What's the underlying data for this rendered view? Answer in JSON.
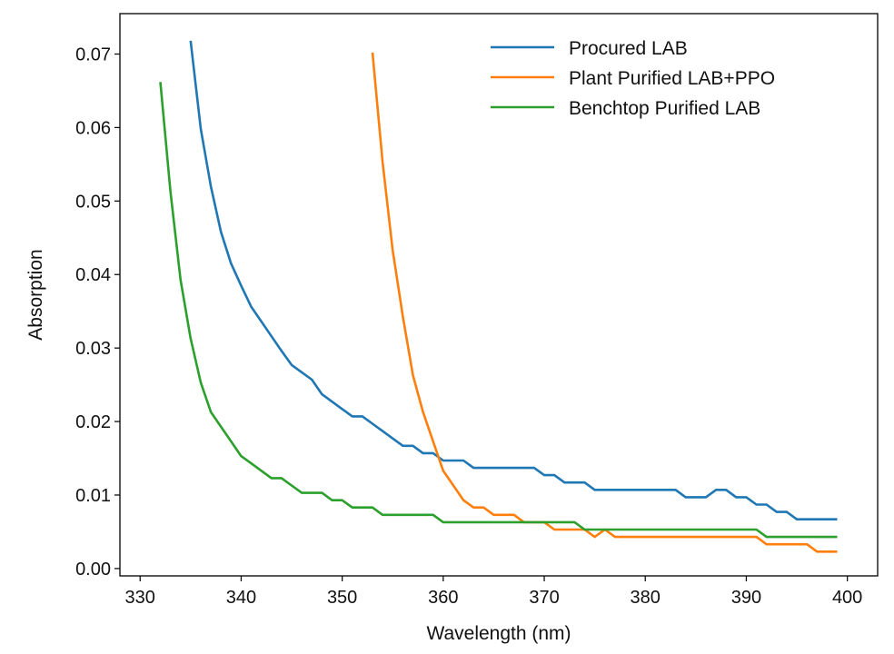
{
  "chart_data": {
    "type": "line",
    "title": "",
    "xlabel": "Wavelength (nm)",
    "ylabel": "Absorption",
    "xlim": [
      328,
      403
    ],
    "ylim": [
      -0.001,
      0.0755
    ],
    "xticks": [
      330,
      340,
      350,
      360,
      370,
      380,
      390,
      400
    ],
    "yticks": [
      0.0,
      0.01,
      0.02,
      0.03,
      0.04,
      0.05,
      0.06,
      0.07
    ],
    "ytick_labels": [
      "0.00",
      "0.01",
      "0.02",
      "0.03",
      "0.04",
      "0.05",
      "0.06",
      "0.07"
    ],
    "grid": false,
    "legend": "top-right",
    "series": [
      {
        "name": "Procured LAB",
        "color": "#1f77b4",
        "x": [
          335,
          336,
          337,
          338,
          339,
          340,
          341,
          342,
          343,
          344,
          345,
          346,
          347,
          348,
          349,
          350,
          351,
          352,
          353,
          354,
          355,
          356,
          357,
          358,
          359,
          360,
          361,
          362,
          363,
          364,
          365,
          366,
          367,
          368,
          369,
          370,
          371,
          372,
          373,
          374,
          375,
          376,
          377,
          378,
          379,
          380,
          381,
          382,
          383,
          384,
          385,
          386,
          387,
          388,
          389,
          390,
          391,
          392,
          393,
          394,
          395,
          396,
          397,
          398,
          399
        ],
        "y": [
          0.0718,
          0.0598,
          0.052,
          0.0458,
          0.0415,
          0.0385,
          0.0356,
          0.0336,
          0.0316,
          0.0296,
          0.0277,
          0.0267,
          0.0257,
          0.0237,
          0.0227,
          0.0217,
          0.0207,
          0.0207,
          0.0197,
          0.0187,
          0.0177,
          0.0167,
          0.0167,
          0.0157,
          0.0157,
          0.0147,
          0.0147,
          0.0147,
          0.0137,
          0.0137,
          0.0137,
          0.0137,
          0.0137,
          0.0137,
          0.0137,
          0.0127,
          0.0127,
          0.0117,
          0.0117,
          0.0117,
          0.0107,
          0.0107,
          0.0107,
          0.0107,
          0.0107,
          0.0107,
          0.0107,
          0.0107,
          0.0107,
          0.0097,
          0.0097,
          0.0097,
          0.0107,
          0.0107,
          0.0097,
          0.0097,
          0.0087,
          0.0087,
          0.0077,
          0.0077,
          0.0067,
          0.0067,
          0.0067,
          0.0067,
          0.0067
        ]
      },
      {
        "name": "Plant Purified LAB+PPO",
        "color": "#ff7f0e",
        "x": [
          353,
          354,
          355,
          356,
          357,
          358,
          359,
          360,
          361,
          362,
          363,
          364,
          365,
          366,
          367,
          368,
          369,
          370,
          371,
          372,
          373,
          374,
          375,
          376,
          377,
          378,
          379,
          380,
          381,
          382,
          383,
          384,
          385,
          386,
          387,
          388,
          389,
          390,
          391,
          392,
          393,
          394,
          395,
          396,
          397,
          398,
          399
        ],
        "y": [
          0.0702,
          0.0553,
          0.0433,
          0.0343,
          0.0263,
          0.0213,
          0.0173,
          0.0133,
          0.0113,
          0.0093,
          0.0083,
          0.0083,
          0.0073,
          0.0073,
          0.0073,
          0.0063,
          0.0063,
          0.0063,
          0.0053,
          0.0053,
          0.0053,
          0.0053,
          0.0043,
          0.0053,
          0.0043,
          0.0043,
          0.0043,
          0.0043,
          0.0043,
          0.0043,
          0.0043,
          0.0043,
          0.0043,
          0.0043,
          0.0043,
          0.0043,
          0.0043,
          0.0043,
          0.0043,
          0.0033,
          0.0033,
          0.0033,
          0.0033,
          0.0033,
          0.0023,
          0.0023,
          0.0023
        ]
      },
      {
        "name": "Benchtop Purified LAB",
        "color": "#2ca02c",
        "x": [
          332,
          333,
          334,
          335,
          336,
          337,
          338,
          339,
          340,
          341,
          342,
          343,
          344,
          345,
          346,
          347,
          348,
          349,
          350,
          351,
          352,
          353,
          354,
          355,
          356,
          357,
          358,
          359,
          360,
          361,
          362,
          363,
          364,
          365,
          366,
          367,
          368,
          369,
          370,
          371,
          372,
          373,
          374,
          375,
          376,
          377,
          378,
          379,
          380,
          381,
          382,
          383,
          384,
          385,
          386,
          387,
          388,
          389,
          390,
          391,
          392,
          393,
          394,
          395,
          396,
          397,
          398,
          399
        ],
        "y": [
          0.0662,
          0.0513,
          0.0393,
          0.0313,
          0.0253,
          0.0213,
          0.0193,
          0.0173,
          0.0153,
          0.0143,
          0.0133,
          0.0123,
          0.0123,
          0.0113,
          0.0103,
          0.0103,
          0.0103,
          0.0093,
          0.0093,
          0.0083,
          0.0083,
          0.0083,
          0.0073,
          0.0073,
          0.0073,
          0.0073,
          0.0073,
          0.0073,
          0.0063,
          0.0063,
          0.0063,
          0.0063,
          0.0063,
          0.0063,
          0.0063,
          0.0063,
          0.0063,
          0.0063,
          0.0063,
          0.0063,
          0.0063,
          0.0063,
          0.0053,
          0.0053,
          0.0053,
          0.0053,
          0.0053,
          0.0053,
          0.0053,
          0.0053,
          0.0053,
          0.0053,
          0.0053,
          0.0053,
          0.0053,
          0.0053,
          0.0053,
          0.0053,
          0.0053,
          0.0053,
          0.0043,
          0.0043,
          0.0043,
          0.0043,
          0.0043,
          0.0043,
          0.0043,
          0.0043
        ]
      }
    ]
  }
}
